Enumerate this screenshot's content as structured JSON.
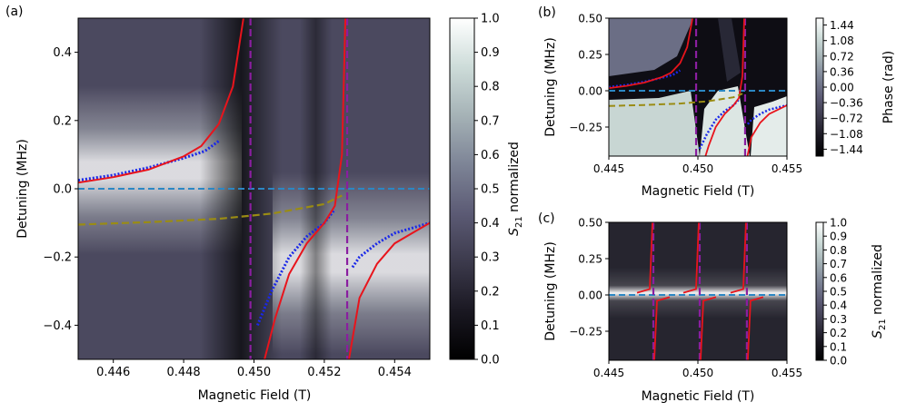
{
  "colorbar_gradient": [
    "#000000",
    "#1a1822",
    "#3c3a4c",
    "#5c5b75",
    "#7d8496",
    "#a5b2b6",
    "#cddcd9",
    "#ffffff"
  ],
  "line_colors": {
    "fit": "#e8141c",
    "data": "#1a28e8",
    "bare": "#9a8c14",
    "res_zero": "#2b87c4",
    "field_marker": "#8a1ea0"
  },
  "chart_data": [
    {
      "panel": "(a)",
      "type": "heatmap",
      "xlabel": "Magnetic Field (T)",
      "ylabel": "Detuning (MHz)",
      "xlim": [
        0.445,
        0.455
      ],
      "ylim": [
        -0.5,
        0.5
      ],
      "xticks": [
        "0.446",
        "0.448",
        "0.450",
        "0.452",
        "0.454"
      ],
      "xtick_values": [
        0.446,
        0.448,
        0.45,
        0.452,
        0.454
      ],
      "yticks": [
        "0.4",
        "0.2",
        "0.0",
        "−0.2",
        "−0.4"
      ],
      "ytick_values": [
        0.4,
        0.2,
        0.0,
        -0.2,
        -0.4
      ],
      "colorbar": {
        "label": "S21 normalized",
        "label_main": "S",
        "label_sub": "21",
        "label_rest": " normalized",
        "ticks": [
          "1.0",
          "0.9",
          "0.8",
          "0.7",
          "0.6",
          "0.5",
          "0.4",
          "0.3",
          "0.2",
          "0.1",
          "0.0"
        ],
        "range": [
          0,
          1
        ]
      },
      "field_markers": [
        0.4499,
        0.45265
      ],
      "resonator_detuning": 0.0,
      "series": [
        {
          "name": "measured peak (low)",
          "style": "blue dotted",
          "x": [
            0.445,
            0.446,
            0.447,
            0.448,
            0.4486,
            0.449
          ],
          "y": [
            0.025,
            0.04,
            0.062,
            0.09,
            0.11,
            0.14
          ]
        },
        {
          "name": "measured peak (mid)",
          "style": "blue dotted",
          "x": [
            0.4501,
            0.4505,
            0.451,
            0.4515,
            0.452,
            0.4523
          ],
          "y": [
            -0.4,
            -0.3,
            -0.2,
            -0.14,
            -0.1,
            -0.06
          ]
        },
        {
          "name": "measured peak (high)",
          "style": "blue dotted",
          "x": [
            0.4528,
            0.453,
            0.4535,
            0.454,
            0.455
          ],
          "y": [
            -0.23,
            -0.2,
            -0.16,
            -0.13,
            -0.1
          ]
        },
        {
          "name": "fit lower branch",
          "style": "red solid",
          "x": [
            0.445,
            0.446,
            0.447,
            0.448,
            0.4485,
            0.449,
            0.4494,
            0.4497
          ],
          "y": [
            0.018,
            0.034,
            0.056,
            0.095,
            0.125,
            0.19,
            0.3,
            0.5
          ]
        },
        {
          "name": "fit middle branch",
          "style": "red solid",
          "x": [
            0.4503,
            0.4506,
            0.451,
            0.4515,
            0.452,
            0.4523,
            0.4525,
            0.4526
          ],
          "y": [
            -0.5,
            -0.38,
            -0.25,
            -0.16,
            -0.1,
            -0.05,
            0.1,
            0.5
          ]
        },
        {
          "name": "fit upper branch",
          "style": "red solid",
          "x": [
            0.4527,
            0.453,
            0.4535,
            0.454,
            0.4545,
            0.455
          ],
          "y": [
            -0.5,
            -0.32,
            -0.22,
            -0.16,
            -0.13,
            -0.1
          ]
        },
        {
          "name": "bare spin transition",
          "style": "olive dashed",
          "x": [
            0.445,
            0.447,
            0.449,
            0.4505,
            0.452,
            0.4525
          ],
          "y": [
            -0.105,
            -0.098,
            -0.088,
            -0.073,
            -0.045,
            -0.02
          ]
        }
      ]
    },
    {
      "panel": "(b)",
      "type": "heatmap",
      "xlabel": "Magnetic Field (T)",
      "ylabel": "Detuning (MHz)",
      "xlim": [
        0.445,
        0.455
      ],
      "ylim": [
        -0.45,
        0.5
      ],
      "xticks": [
        "0.445",
        "0.450",
        "0.455"
      ],
      "xtick_values": [
        0.445,
        0.45,
        0.455
      ],
      "yticks": [
        "0.50",
        "0.25",
        "0.00",
        "−0.25"
      ],
      "ytick_values": [
        0.5,
        0.25,
        0.0,
        -0.25
      ],
      "colorbar": {
        "label": "Phase (rad)",
        "ticks": [
          "1.44",
          "1.08",
          "0.72",
          "0.36",
          "0.00",
          "−0.36",
          "−0.72",
          "−1.08",
          "−1.44"
        ],
        "range": [
          -1.6,
          1.6
        ]
      },
      "field_markers": [
        0.4499,
        0.45265
      ]
    },
    {
      "panel": "(c)",
      "type": "heatmap",
      "xlabel": "Magnetic Field (T)",
      "ylabel": "Detuning (MHz)",
      "xlim": [
        0.445,
        0.455
      ],
      "ylim": [
        -0.45,
        0.5
      ],
      "xticks": [
        "0.445",
        "0.450",
        "0.455"
      ],
      "xtick_values": [
        0.445,
        0.45,
        0.455
      ],
      "yticks": [
        "0.50",
        "0.25",
        "0.00",
        "−0.25"
      ],
      "ytick_values": [
        0.5,
        0.25,
        0.0,
        -0.25
      ],
      "colorbar": {
        "label": "S21 normalized",
        "label_main": "S",
        "label_sub": "21",
        "label_rest": " normalized",
        "ticks": [
          "1.0",
          "0.9",
          "0.8",
          "0.7",
          "0.6",
          "0.5",
          "0.4",
          "0.3",
          "0.2",
          "0.1",
          "0.0"
        ],
        "range": [
          0,
          1
        ]
      },
      "field_markers": [
        0.4475,
        0.4501,
        0.45275
      ]
    }
  ]
}
